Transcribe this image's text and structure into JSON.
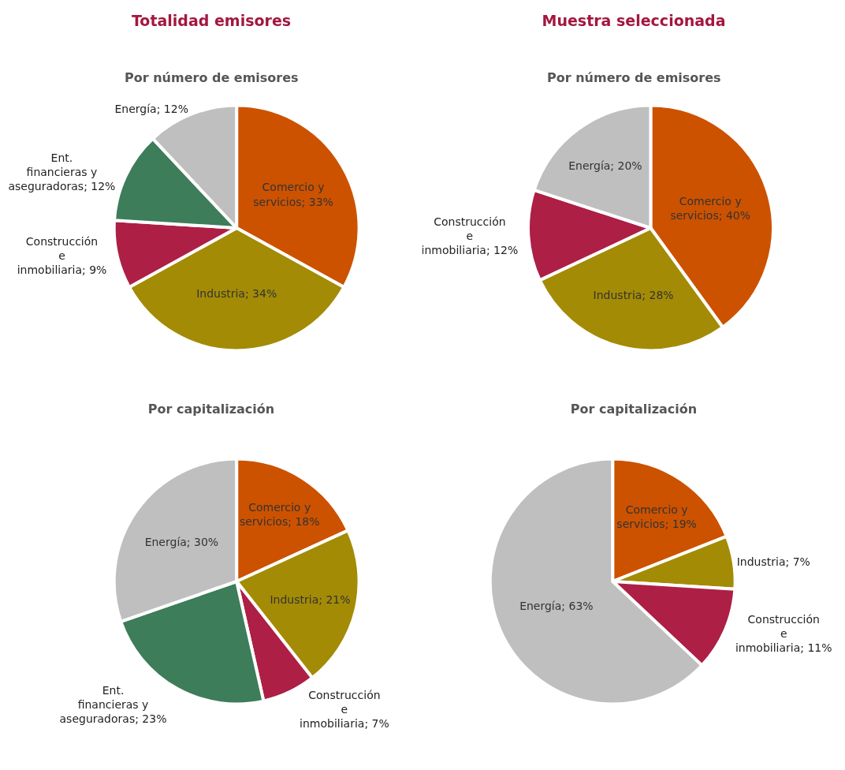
{
  "chart_data": [
    {
      "type": "pie",
      "title": "Totalidad emisores",
      "subtitle": "Por número de emisores",
      "categories": [
        "Comercio y servicios",
        "Industria",
        "Construcción e inmobiliaria",
        "Ent. financieras y aseguradoras",
        "Energía"
      ],
      "values": [
        33,
        34,
        9,
        12,
        12
      ],
      "value_labels": [
        "33%",
        "34%",
        "9%",
        "12%",
        "12%"
      ],
      "colors": [
        "#cc5200",
        "#a38b05",
        "#ad1f45",
        "#3d7d59",
        "#bfbfbf"
      ],
      "legend": false
    },
    {
      "type": "pie",
      "title": "Muestra seleccionada",
      "subtitle": "Por número de emisores",
      "categories": [
        "Comercio y servicios",
        "Industria",
        "Construcción e inmobiliaria",
        "Energía"
      ],
      "values": [
        40,
        28,
        12,
        20
      ],
      "value_labels": [
        "40%",
        "28%",
        "12%",
        "20%"
      ],
      "colors": [
        "#cc5200",
        "#a38b05",
        "#ad1f45",
        "#bfbfbf"
      ],
      "legend": false
    },
    {
      "type": "pie",
      "title": "Por capitalización",
      "categories": [
        "Comercio y servicios",
        "Industria",
        "Construcción e inmobiliaria",
        "Ent. financieras y aseguradoras",
        "Energía"
      ],
      "values": [
        18,
        21,
        7,
        23,
        30
      ],
      "value_labels": [
        "18%",
        "21%",
        "7%",
        "23%",
        "30%"
      ],
      "colors": [
        "#cc5200",
        "#a38b05",
        "#ad1f45",
        "#3d7d59",
        "#bfbfbf"
      ],
      "legend": false
    },
    {
      "type": "pie",
      "title": "Por capitalización",
      "categories": [
        "Comercio y servicios",
        "Industria",
        "Construcción e inmobiliaria",
        "Energía"
      ],
      "values": [
        19,
        7,
        11,
        63
      ],
      "value_labels": [
        "19%",
        "7%",
        "11%",
        "63%"
      ],
      "colors": [
        "#cc5200",
        "#a38b05",
        "#ad1f45",
        "#bfbfbf"
      ],
      "legend": false
    }
  ]
}
